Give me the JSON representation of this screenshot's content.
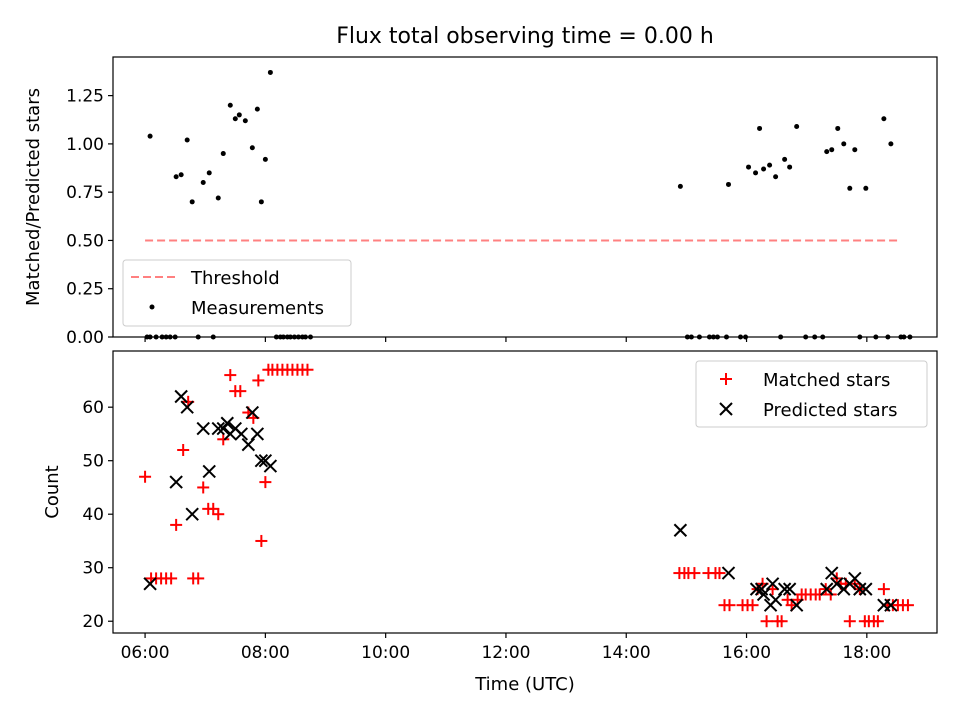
{
  "chart_data": [
    {
      "type": "scatter",
      "title": "Flux total observing time = 0.00 h",
      "xlabel": "",
      "ylabel": "Matched/Predicted stars",
      "xlim": [
        "05:28",
        "19:10"
      ],
      "ylim": [
        0,
        1.45
      ],
      "x_ticks": [
        "06:00",
        "08:00",
        "10:00",
        "12:00",
        "14:00",
        "16:00",
        "18:00"
      ],
      "y_ticks": [
        "0.00",
        "0.25",
        "0.50",
        "0.75",
        "1.00",
        "1.25"
      ],
      "legend": {
        "position": "lower-left",
        "entries": [
          "Threshold",
          "Measurements"
        ]
      },
      "threshold": {
        "name": "Threshold",
        "value": 0.5,
        "x_range": [
          "06:00",
          "18:33"
        ],
        "color": "#ff8080",
        "style": "dashed"
      },
      "series": [
        {
          "name": "Measurements",
          "marker": "dot",
          "color": "#000000",
          "points": [
            [
              "06:02",
              0
            ],
            [
              "06:05",
              0
            ],
            [
              "06:11",
              0
            ],
            [
              "06:17",
              0
            ],
            [
              "06:21",
              0
            ],
            [
              "06:25",
              0
            ],
            [
              "06:30",
              0
            ],
            [
              "06:53",
              0
            ],
            [
              "07:08",
              0
            ],
            [
              "06:05",
              1.04
            ],
            [
              "06:31",
              0.83
            ],
            [
              "06:36",
              0.84
            ],
            [
              "06:42",
              1.02
            ],
            [
              "06:47",
              0.7
            ],
            [
              "06:58",
              0.8
            ],
            [
              "07:04",
              0.85
            ],
            [
              "07:13",
              0.72
            ],
            [
              "07:18",
              0.95
            ],
            [
              "07:25",
              1.2
            ],
            [
              "07:30",
              1.13
            ],
            [
              "07:34",
              1.15
            ],
            [
              "07:40",
              1.12
            ],
            [
              "07:47",
              0.98
            ],
            [
              "07:52",
              1.18
            ],
            [
              "07:56",
              0.7
            ],
            [
              "08:00",
              0.92
            ],
            [
              "08:05",
              1.37
            ],
            [
              "08:11",
              0
            ],
            [
              "08:15",
              0
            ],
            [
              "08:18",
              0
            ],
            [
              "08:22",
              0
            ],
            [
              "08:25",
              0
            ],
            [
              "08:29",
              0
            ],
            [
              "08:33",
              0
            ],
            [
              "08:37",
              0
            ],
            [
              "08:40",
              0
            ],
            [
              "08:45",
              0
            ],
            [
              "14:54",
              0.78
            ],
            [
              "15:01",
              0
            ],
            [
              "15:05",
              0
            ],
            [
              "15:13",
              0
            ],
            [
              "15:23",
              0
            ],
            [
              "15:27",
              0
            ],
            [
              "15:31",
              0
            ],
            [
              "15:42",
              0.79
            ],
            [
              "15:40",
              0
            ],
            [
              "15:54",
              0
            ],
            [
              "15:59",
              0
            ],
            [
              "16:02",
              0.88
            ],
            [
              "16:09",
              0.85
            ],
            [
              "16:13",
              1.08
            ],
            [
              "16:17",
              0.87
            ],
            [
              "16:23",
              0.89
            ],
            [
              "16:29",
              0.83
            ],
            [
              "16:34",
              0
            ],
            [
              "16:38",
              0.92
            ],
            [
              "16:43",
              0.88
            ],
            [
              "16:50",
              1.09
            ],
            [
              "16:59",
              0
            ],
            [
              "17:08",
              0
            ],
            [
              "17:16",
              0
            ],
            [
              "17:20",
              0.96
            ],
            [
              "17:25",
              0.97
            ],
            [
              "17:31",
              1.08
            ],
            [
              "17:37",
              1.0
            ],
            [
              "17:43",
              0.77
            ],
            [
              "17:48",
              0.97
            ],
            [
              "17:53",
              0
            ],
            [
              "17:59",
              0.77
            ],
            [
              "18:09",
              0
            ],
            [
              "18:17",
              1.13
            ],
            [
              "18:24",
              1.0
            ],
            [
              "18:21",
              0
            ],
            [
              "18:34",
              0
            ],
            [
              "18:37",
              0
            ],
            [
              "18:43",
              0
            ]
          ]
        }
      ]
    },
    {
      "type": "scatter",
      "title": "",
      "xlabel": "Time (UTC)",
      "ylabel": "Count",
      "xlim": [
        "05:28",
        "19:10"
      ],
      "ylim": [
        17.8,
        70.5
      ],
      "x_ticks": [
        "06:00",
        "08:00",
        "10:00",
        "12:00",
        "14:00",
        "16:00",
        "18:00"
      ],
      "y_ticks": [
        "20",
        "30",
        "40",
        "50",
        "60"
      ],
      "legend": {
        "position": "top-right",
        "entries": [
          "Matched stars",
          "Predicted stars"
        ]
      },
      "series": [
        {
          "name": "Matched stars",
          "marker": "plus",
          "color": "#ff0000",
          "points": [
            [
              "06:00",
              47
            ],
            [
              "06:06",
              28
            ],
            [
              "06:11",
              28
            ],
            [
              "06:16",
              28
            ],
            [
              "06:21",
              28
            ],
            [
              "06:26",
              28
            ],
            [
              "06:31",
              38
            ],
            [
              "06:38",
              52
            ],
            [
              "06:43",
              61
            ],
            [
              "06:48",
              28
            ],
            [
              "06:53",
              28
            ],
            [
              "06:58",
              45
            ],
            [
              "07:03",
              41
            ],
            [
              "07:08",
              41
            ],
            [
              "07:13",
              40
            ],
            [
              "07:18",
              54
            ],
            [
              "07:25",
              66
            ],
            [
              "07:30",
              63
            ],
            [
              "07:35",
              63
            ],
            [
              "07:43",
              59
            ],
            [
              "07:48",
              58
            ],
            [
              "07:53",
              65
            ],
            [
              "07:56",
              35
            ],
            [
              "08:00",
              46
            ],
            [
              "08:03",
              67
            ],
            [
              "08:07",
              67
            ],
            [
              "08:12",
              67
            ],
            [
              "08:17",
              67
            ],
            [
              "08:22",
              67
            ],
            [
              "08:27",
              67
            ],
            [
              "08:32",
              67
            ],
            [
              "08:37",
              67
            ],
            [
              "08:42",
              67
            ],
            [
              "14:53",
              29
            ],
            [
              "14:58",
              29
            ],
            [
              "15:02",
              29
            ],
            [
              "15:08",
              29
            ],
            [
              "15:22",
              29
            ],
            [
              "15:29",
              29
            ],
            [
              "15:33",
              29
            ],
            [
              "15:38",
              23
            ],
            [
              "15:43",
              23
            ],
            [
              "15:56",
              23
            ],
            [
              "16:01",
              23
            ],
            [
              "16:06",
              23
            ],
            [
              "16:11",
              26
            ],
            [
              "16:16",
              27
            ],
            [
              "16:20",
              20
            ],
            [
              "16:26",
              26
            ],
            [
              "16:31",
              20
            ],
            [
              "16:35",
              20
            ],
            [
              "16:41",
              24
            ],
            [
              "16:45",
              23
            ],
            [
              "16:51",
              24
            ],
            [
              "16:55",
              25
            ],
            [
              "16:59",
              25
            ],
            [
              "17:04",
              25
            ],
            [
              "17:09",
              25
            ],
            [
              "17:13",
              25
            ],
            [
              "17:19",
              26
            ],
            [
              "17:24",
              25
            ],
            [
              "17:30",
              28
            ],
            [
              "17:34",
              27
            ],
            [
              "17:39",
              27
            ],
            [
              "17:43",
              20
            ],
            [
              "17:48",
              27
            ],
            [
              "17:53",
              26
            ],
            [
              "17:58",
              20
            ],
            [
              "18:02",
              20
            ],
            [
              "18:07",
              20
            ],
            [
              "18:11",
              20
            ],
            [
              "18:17",
              26
            ],
            [
              "18:21",
              23
            ],
            [
              "18:26",
              23
            ],
            [
              "18:31",
              23
            ],
            [
              "18:36",
              23
            ],
            [
              "18:41",
              23
            ]
          ]
        },
        {
          "name": "Predicted stars",
          "marker": "x",
          "color": "#000000",
          "points": [
            [
              "06:05",
              27
            ],
            [
              "06:31",
              46
            ],
            [
              "06:36",
              62
            ],
            [
              "06:42",
              60
            ],
            [
              "06:47",
              40
            ],
            [
              "06:58",
              56
            ],
            [
              "07:04",
              48
            ],
            [
              "07:13",
              56
            ],
            [
              "07:18",
              56
            ],
            [
              "07:22",
              57
            ],
            [
              "07:25",
              55
            ],
            [
              "07:30",
              56
            ],
            [
              "07:36",
              55
            ],
            [
              "07:43",
              53
            ],
            [
              "07:47",
              59
            ],
            [
              "07:52",
              55
            ],
            [
              "07:56",
              50
            ],
            [
              "08:00",
              50
            ],
            [
              "08:05",
              49
            ],
            [
              "14:54",
              37
            ],
            [
              "15:42",
              29
            ],
            [
              "16:10",
              26
            ],
            [
              "16:15",
              26
            ],
            [
              "16:17",
              25
            ],
            [
              "16:24",
              23
            ],
            [
              "16:26",
              27
            ],
            [
              "16:29",
              24
            ],
            [
              "16:38",
              26
            ],
            [
              "16:43",
              26
            ],
            [
              "16:50",
              23
            ],
            [
              "17:20",
              26
            ],
            [
              "17:25",
              29
            ],
            [
              "17:30",
              27
            ],
            [
              "17:37",
              26
            ],
            [
              "17:43",
              27
            ],
            [
              "17:48",
              28
            ],
            [
              "17:53",
              26
            ],
            [
              "17:59",
              26
            ],
            [
              "18:17",
              23
            ],
            [
              "18:24",
              23
            ]
          ]
        }
      ]
    }
  ]
}
